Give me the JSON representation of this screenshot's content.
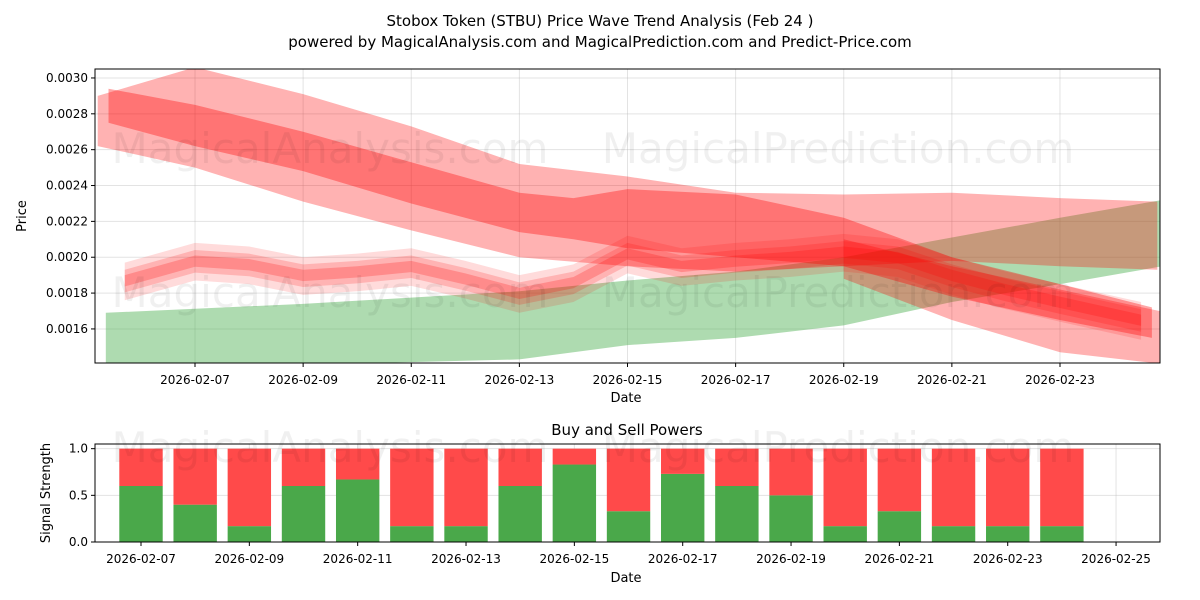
{
  "title": "Stobox Token (STBU) Price Wave Trend Analysis (Feb 24 )",
  "subtitle": "powered by MagicalAnalysis.com and MagicalPrediction.com and Predict-Price.com",
  "watermarks": [
    "MagicalAnalysis.com",
    "MagicalPrediction.com"
  ],
  "colors": {
    "red": "#ff0000",
    "green": "#4caf50",
    "bar_red": "#ff4a4a",
    "bar_green": "#4aa84a"
  },
  "chart_data": [
    {
      "type": "area",
      "title": "",
      "xlabel": "Date",
      "ylabel": "Price",
      "ylim": [
        0.00141,
        0.00305
      ],
      "xlim_days_from_2026_02_07": [
        -1.85,
        17.85
      ],
      "grid": true,
      "x_tick_labels": [
        "2026-02-07",
        "2026-02-09",
        "2026-02-11",
        "2026-02-13",
        "2026-02-15",
        "2026-02-17",
        "2026-02-19",
        "2026-02-21",
        "2026-02-23"
      ],
      "x_tick_days": [
        0,
        2,
        4,
        6,
        8,
        10,
        12,
        14,
        16
      ],
      "y_ticks": [
        0.0016,
        0.0018,
        0.002,
        0.0022,
        0.0024,
        0.0026,
        0.0028,
        0.003
      ],
      "y_tick_labels": [
        "0.0016",
        "0.0018",
        "0.0020",
        "0.0022",
        "0.0024",
        "0.0026",
        "0.0028",
        "0.0030"
      ],
      "bands": [
        {
          "name": "upper-wide-red",
          "color": "#ff0000",
          "opacity": 0.3,
          "x": [
            -1.8,
            0,
            2,
            4,
            6,
            8,
            10,
            12,
            14,
            16,
            17.8
          ],
          "upper": [
            0.0029,
            0.00306,
            0.00291,
            0.00273,
            0.00252,
            0.00245,
            0.00236,
            0.00235,
            0.00236,
            0.00233,
            0.00231
          ],
          "lower": [
            0.00262,
            0.0025,
            0.00231,
            0.00215,
            0.002,
            0.00195,
            0.00192,
            0.00195,
            0.00198,
            0.00195,
            0.00193
          ]
        },
        {
          "name": "core-red",
          "color": "#ff0000",
          "opacity": 0.35,
          "x": [
            -1.6,
            0,
            2,
            4,
            6,
            7,
            8,
            10,
            12,
            14,
            16,
            17.7
          ],
          "upper": [
            0.00294,
            0.00285,
            0.0027,
            0.00253,
            0.00236,
            0.00233,
            0.00238,
            0.00235,
            0.00222,
            0.002,
            0.00185,
            0.00172
          ],
          "lower": [
            0.00275,
            0.00262,
            0.00248,
            0.0023,
            0.00214,
            0.0021,
            0.00205,
            0.002,
            0.00195,
            0.00178,
            0.00165,
            0.00155
          ]
        },
        {
          "name": "lower-red",
          "color": "#ff0000",
          "opacity": 0.3,
          "x": [
            12,
            14,
            16,
            18.6
          ],
          "upper": [
            0.0021,
            0.00195,
            0.00182,
            0.00165
          ],
          "lower": [
            0.00188,
            0.00165,
            0.00147,
            0.00138
          ]
        },
        {
          "name": "green-trend",
          "color": "#4caf50",
          "opacity": 0.45,
          "x": [
            -1.65,
            2,
            6,
            8,
            10,
            12,
            14,
            16,
            17.9
          ],
          "upper": [
            0.00169,
            0.00174,
            0.00181,
            0.00187,
            0.00192,
            0.002,
            0.00211,
            0.00222,
            0.00232
          ],
          "lower": [
            0.00138,
            0.0014,
            0.00143,
            0.00151,
            0.00155,
            0.00162,
            0.00175,
            0.00185,
            0.00195
          ]
        }
      ],
      "wave": {
        "color": "#ff0000",
        "x": [
          -1.3,
          0,
          1,
          2,
          3,
          4,
          5,
          6,
          7,
          8,
          9,
          10,
          11,
          12,
          13,
          14,
          15,
          16,
          17.5
        ],
        "center": [
          0.00187,
          0.00198,
          0.00196,
          0.0019,
          0.00192,
          0.00195,
          0.00188,
          0.0018,
          0.00186,
          0.00202,
          0.00195,
          0.00198,
          0.002,
          0.00203,
          0.002,
          0.0019,
          0.00182,
          0.00175,
          0.00165
        ],
        "half_widths": [
          0.0001,
          6e-05,
          3e-05
        ]
      }
    },
    {
      "type": "bar",
      "title": "Buy and Sell Powers",
      "xlabel": "Date",
      "ylabel": "Signal Strength",
      "ylim": [
        0,
        1.05
      ],
      "grid": true,
      "categories": [
        "2026-02-07",
        "2026-02-08",
        "2026-02-09",
        "2026-02-10",
        "2026-02-11",
        "2026-02-12",
        "2026-02-13",
        "2026-02-14",
        "2026-02-15",
        "2026-02-16",
        "2026-02-17",
        "2026-02-18",
        "2026-02-19",
        "2026-02-20",
        "2026-02-21",
        "2026-02-22",
        "2026-02-23",
        "2026-02-24"
      ],
      "series": [
        {
          "name": "Buy",
          "color": "#4aa84a",
          "values": [
            0.6,
            0.4,
            0.17,
            0.6,
            0.67,
            0.17,
            0.17,
            0.6,
            0.83,
            0.33,
            0.73,
            0.6,
            0.5,
            0.17,
            0.33,
            0.17,
            0.17,
            0.17
          ]
        },
        {
          "name": "Sell",
          "color": "#ff4a4a",
          "values": [
            0.4,
            0.6,
            0.83,
            0.4,
            0.33,
            0.83,
            0.83,
            0.4,
            0.17,
            0.67,
            0.27,
            0.4,
            0.5,
            0.83,
            0.67,
            0.83,
            0.83,
            0.83
          ]
        }
      ],
      "x_tick_labels": [
        "2026-02-07",
        "2026-02-09",
        "2026-02-11",
        "2026-02-13",
        "2026-02-15",
        "2026-02-17",
        "2026-02-19",
        "2026-02-21",
        "2026-02-23",
        "2026-02-25"
      ],
      "x_tick_days": [
        0,
        2,
        4,
        6,
        8,
        10,
        12,
        14,
        16,
        18
      ],
      "y_ticks": [
        0,
        0.5,
        1.0
      ],
      "y_tick_labels": [
        "0.0",
        "0.5",
        "1.0"
      ]
    }
  ]
}
